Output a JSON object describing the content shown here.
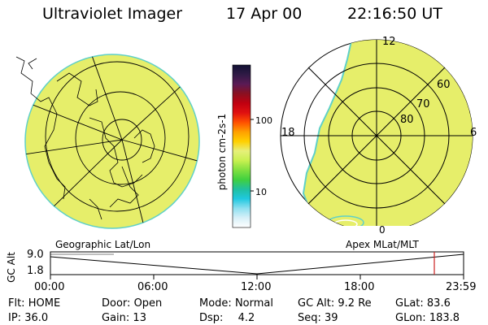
{
  "header": {
    "title": "Ultraviolet Imager",
    "date": "17 Apr 00",
    "time": "22:16:50 UT"
  },
  "colorbar": {
    "label": "photon cm-2s-1",
    "ticks": [
      "100",
      "10"
    ],
    "stops": [
      "#111133",
      "#301a45",
      "#5a1a55",
      "#8a1020",
      "#c00010",
      "#e01010",
      "#ff5000",
      "#ffa000",
      "#ffd000",
      "#e6f07a",
      "#c8f050",
      "#80e040",
      "#40d040",
      "#20c0a0",
      "#20c8e0",
      "#90e0f0",
      "#d8f0f8",
      "#ffffff"
    ]
  },
  "globe": {
    "fill": "#e6ee6a",
    "edge": "#5fd0c8"
  },
  "polar_plot": {
    "mlt_labels": {
      "top": "12",
      "left": "18",
      "right": "6",
      "bottom": "0"
    },
    "lat_labels": [
      "60",
      "70",
      "80"
    ]
  },
  "timeline": {
    "left_caption": "Geographic Lat/Lon",
    "right_caption": "Apex MLat/MLT",
    "y_label": "GC Alt",
    "y_max": "9.0",
    "y_min": "1.8",
    "x_ticks": [
      "00:00",
      "06:00",
      "12:00",
      "18:00",
      "23:59"
    ],
    "marker_time": "22:17",
    "marker_color": "#cc2222"
  },
  "footer": {
    "row1": [
      {
        "label": "Flt:",
        "value": "HOME"
      },
      {
        "label": "Door:",
        "value": "Open"
      },
      {
        "label": "Mode:",
        "value": "Normal"
      },
      {
        "label": "GC Alt:",
        "value": "9.2 Re"
      },
      {
        "label": "GLat:",
        "value": "83.6"
      }
    ],
    "row2": [
      {
        "label": "IP:",
        "value": "36.0"
      },
      {
        "label": "Gain:",
        "value": "13"
      },
      {
        "label": "Dsp:",
        "value": "4.2"
      },
      {
        "label": "Seq:",
        "value": "39"
      },
      {
        "label": "GLon:",
        "value": "183.8"
      }
    ]
  }
}
